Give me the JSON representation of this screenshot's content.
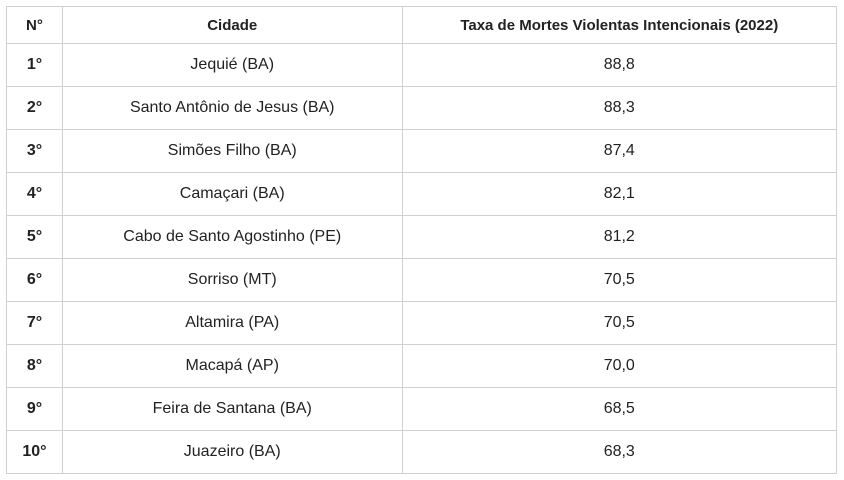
{
  "table": {
    "header": [
      "N°",
      "Cidade",
      "Taxa de Mortes Violentas Intencionais (2022)"
    ],
    "rows": [
      [
        "1°",
        "Jequié (BA)",
        "88,8"
      ],
      [
        "2°",
        "Santo Antônio de Jesus (BA)",
        "88,3"
      ],
      [
        "3°",
        "Simões Filho (BA)",
        "87,4"
      ],
      [
        "4°",
        "Camaçari (BA)",
        "82,1"
      ],
      [
        "5°",
        "Cabo de Santo Agostinho (PE)",
        "81,2"
      ],
      [
        "6°",
        "Sorriso (MT)",
        "70,5"
      ],
      [
        "7°",
        "Altamira (PA)",
        "70,5"
      ],
      [
        "8°",
        "Macapá (AP)",
        "70,0"
      ],
      [
        "9°",
        "Feira de Santana (BA)",
        "68,5"
      ],
      [
        "10°",
        "Juazeiro (BA)",
        "68,3"
      ]
    ]
  }
}
